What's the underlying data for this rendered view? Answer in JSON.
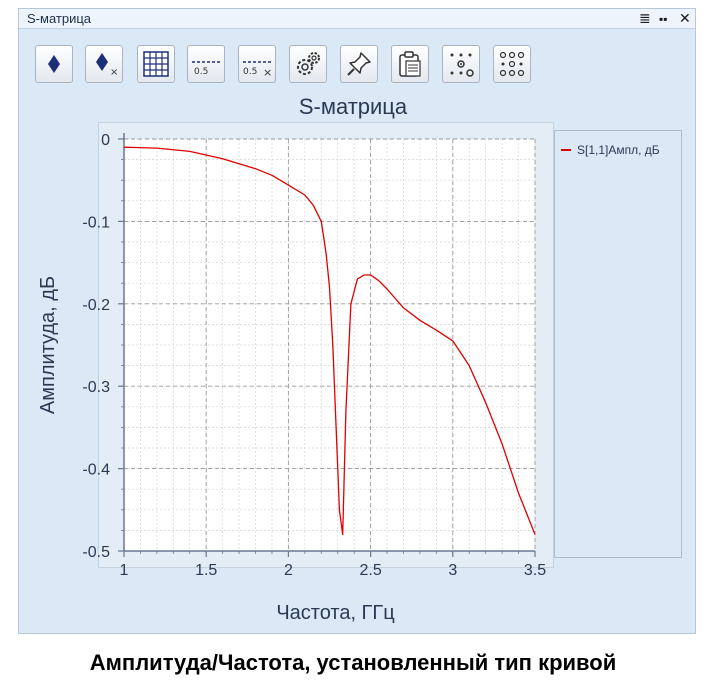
{
  "window": {
    "title": "S-матрица",
    "controls": {
      "menu_icon": "list-icon",
      "layout_icon": "grid-icon",
      "close_glyph": "✕"
    }
  },
  "toolbar": {
    "buttons": [
      {
        "icon": "diamond-marker-icon",
        "label": ""
      },
      {
        "icon": "diamond-marker-remove-icon",
        "label": ""
      },
      {
        "icon": "table-icon",
        "label": ""
      },
      {
        "icon": "level-line-icon",
        "label": "0.5"
      },
      {
        "icon": "level-line-remove-icon",
        "label": "0.5"
      },
      {
        "icon": "settings-icon",
        "label": ""
      },
      {
        "icon": "pin-icon",
        "label": ""
      },
      {
        "icon": "clipboard-icon",
        "label": ""
      },
      {
        "icon": "dots-layout-icon",
        "label": ""
      },
      {
        "icon": "dots-grid-icon",
        "label": ""
      }
    ]
  },
  "chart_data": {
    "type": "line",
    "title": "S-матрица",
    "xlabel": "Частота, ГГц",
    "ylabel": "Амплитуда, дБ",
    "xlim": [
      1,
      3.5
    ],
    "ylim": [
      -0.5,
      0
    ],
    "xticks": [
      "1",
      "1.5",
      "2",
      "2.5",
      "3",
      "3.5"
    ],
    "yticks": [
      "0",
      "-0.1",
      "-0.2",
      "-0.3",
      "-0.4",
      "-0.5"
    ],
    "grid": true,
    "legend_position": "right",
    "series": [
      {
        "name": "S[1,1]Ампл, дБ",
        "color": "#e00000",
        "x": [
          1.0,
          1.2,
          1.4,
          1.6,
          1.8,
          1.9,
          2.0,
          2.1,
          2.15,
          2.2,
          2.23,
          2.25,
          2.27,
          2.29,
          2.31,
          2.33,
          2.35,
          2.38,
          2.42,
          2.46,
          2.5,
          2.55,
          2.6,
          2.7,
          2.8,
          2.9,
          3.0,
          3.1,
          3.2,
          3.3,
          3.4,
          3.45,
          3.5
        ],
        "y": [
          -0.01,
          -0.011,
          -0.015,
          -0.024,
          -0.036,
          -0.044,
          -0.056,
          -0.068,
          -0.08,
          -0.1,
          -0.14,
          -0.18,
          -0.25,
          -0.35,
          -0.45,
          -0.48,
          -0.33,
          -0.2,
          -0.17,
          -0.165,
          -0.165,
          -0.172,
          -0.182,
          -0.205,
          -0.22,
          -0.232,
          -0.245,
          -0.275,
          -0.32,
          -0.37,
          -0.43,
          -0.455,
          -0.48
        ]
      }
    ]
  },
  "caption": "Амплитуда/Частота, установленный тип кривой"
}
